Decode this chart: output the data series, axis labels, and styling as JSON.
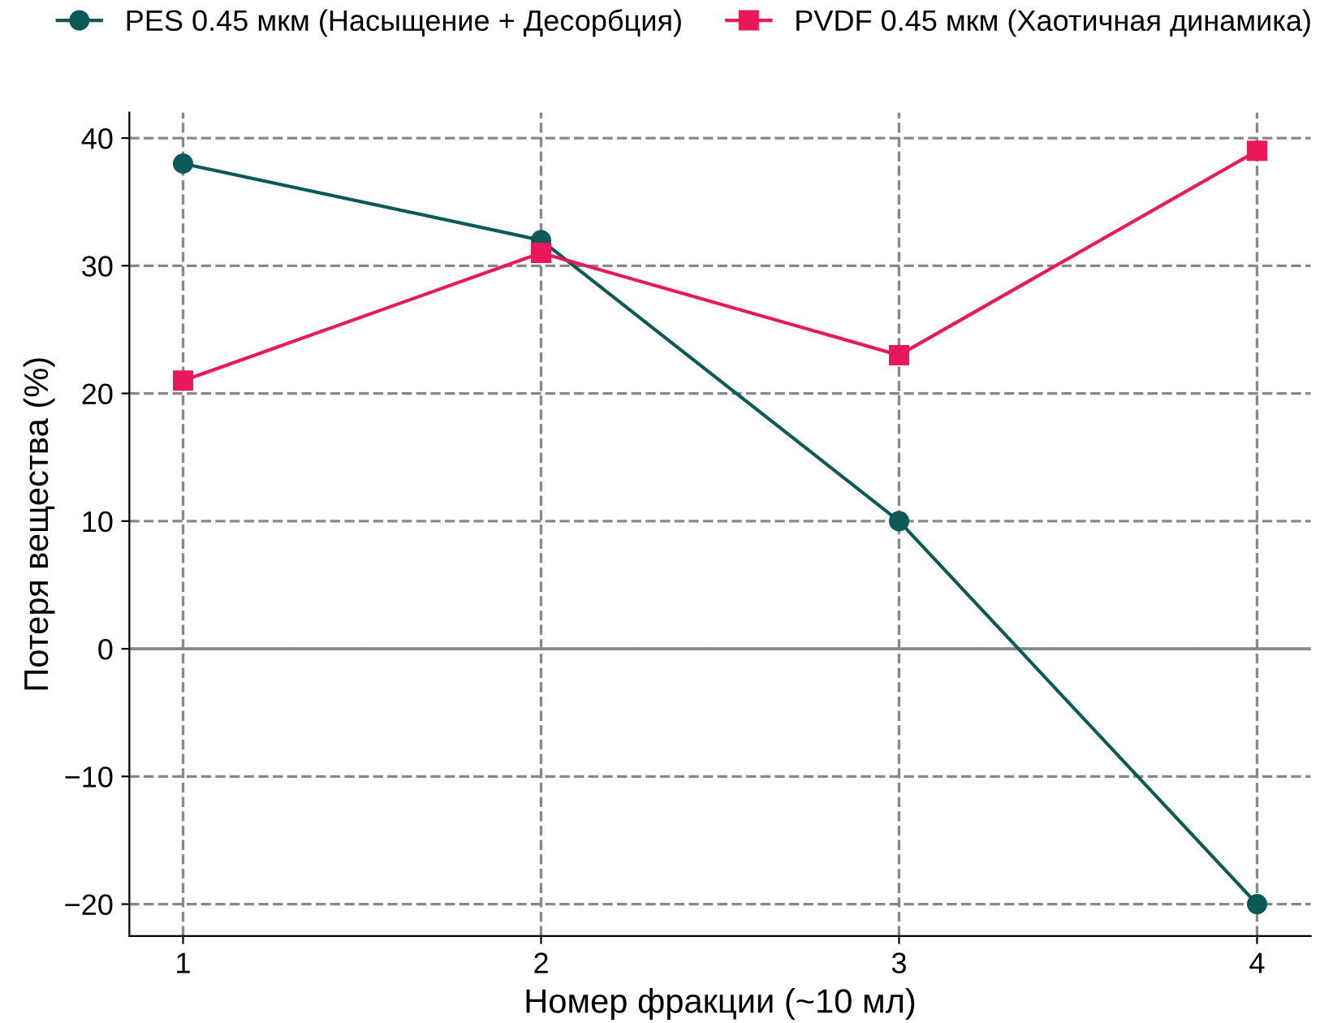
{
  "chart_data": {
    "type": "line",
    "xlabel": "Номер фракции (~10 мл)",
    "ylabel": "Потеря вещества (%)",
    "x": [
      1,
      2,
      3,
      4
    ],
    "series": [
      {
        "name": "PES 0.45 мкм (Насыщение + Десорбция)",
        "color": "#0b5a57",
        "values": [
          38,
          32,
          10,
          -20
        ],
        "marker": "circle"
      },
      {
        "name": "PVDF 0.45 мкм (Хаотичная динамика)",
        "color": "#e8185a",
        "values": [
          21,
          31,
          23,
          39
        ],
        "marker": "square"
      }
    ],
    "xlim": [
      0.85,
      4.15
    ],
    "ylim": [
      -22.5,
      42
    ],
    "xticks": [
      1,
      2,
      3,
      4
    ],
    "yticks": [
      {
        "value": -20,
        "label": "−20"
      },
      {
        "value": -10,
        "label": "−10"
      },
      0,
      10,
      20,
      30,
      40
    ],
    "ref_lines": [
      {
        "axis": "y",
        "value": 0,
        "color": "#888888",
        "line_style": "solid"
      }
    ],
    "grid": true,
    "legend": "top",
    "line_style": "solid"
  }
}
